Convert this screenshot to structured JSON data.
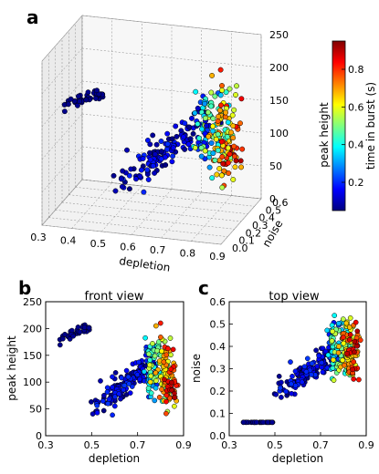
{
  "figure": {
    "panel_a_letter": "a",
    "panel_b_letter": "b",
    "panel_c_letter": "c"
  },
  "colormap": {
    "name": "jet",
    "stops": [
      "#00007f",
      "#0000ff",
      "#007fff",
      "#00ffff",
      "#7fff7f",
      "#ffff00",
      "#ff7f00",
      "#ff0000",
      "#7f0000"
    ]
  },
  "chart_data": [
    {
      "type": "scatter",
      "panel": "a",
      "title": "",
      "xlabel": "depletion",
      "ylabel": "noise",
      "zlabel": "peak height",
      "xlim": [
        0.3,
        0.9
      ],
      "ylim": [
        0.0,
        0.6
      ],
      "zlim": [
        0,
        250
      ],
      "xticks": [
        "0.3",
        "0.4",
        "0.5",
        "0.6",
        "0.7",
        "0.8",
        "0.9"
      ],
      "yticks": [
        "0.0",
        "0.1",
        "0.2",
        "0.3",
        "0.4",
        "0.5",
        "0.6"
      ],
      "zticks": [
        "0",
        "50",
        "100",
        "150",
        "200",
        "250"
      ],
      "grid": true,
      "colorbar": {
        "label": "time in burst (s)",
        "ticks": [
          "0.2",
          "0.4",
          "0.6",
          "0.8"
        ],
        "range": [
          0.05,
          0.95
        ]
      },
      "clusters": [
        {
          "depletion": [
            0.36,
            0.49
          ],
          "noise": [
            0.06,
            0.06
          ],
          "peak_height": [
            180,
            205
          ],
          "color_value": [
            0.0,
            0.02
          ],
          "n": 40
        },
        {
          "depletion": [
            0.52,
            0.8
          ],
          "noise": [
            0.18,
            0.4
          ],
          "peak_height": [
            50,
            150
          ],
          "color_value": [
            0.0,
            0.2
          ],
          "n": 140
        },
        {
          "depletion": [
            0.7,
            0.87
          ],
          "noise": [
            0.25,
            0.52
          ],
          "peak_height": [
            50,
            210
          ],
          "color_value": [
            0.05,
            0.95
          ],
          "n": 200
        }
      ]
    },
    {
      "type": "scatter",
      "panel": "b",
      "title": "front view",
      "xlabel": "depletion",
      "ylabel": "peak height",
      "xlim": [
        0.3,
        0.9
      ],
      "ylim": [
        0,
        250
      ],
      "xticks": [
        "0.3",
        "0.5",
        "0.7",
        "0.9"
      ],
      "yticks": [
        "0",
        "50",
        "100",
        "150",
        "200",
        "250"
      ]
    },
    {
      "type": "scatter",
      "panel": "c",
      "title": "top view",
      "xlabel": "depletion",
      "ylabel": "noise",
      "xlim": [
        0.3,
        0.9
      ],
      "ylim": [
        0.0,
        0.6
      ],
      "xticks": [
        "0.3",
        "0.5",
        "0.7",
        "0.9"
      ],
      "yticks": [
        "0.0",
        "0.1",
        "0.2",
        "0.3",
        "0.4",
        "0.5",
        "0.6"
      ]
    }
  ]
}
